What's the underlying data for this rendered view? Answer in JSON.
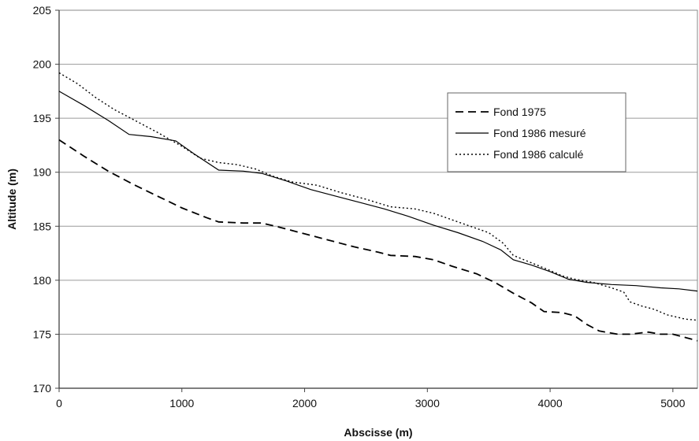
{
  "chart_data": {
    "type": "line",
    "title": "",
    "xlabel": "Abscisse (m)",
    "ylabel": "Altitude (m)",
    "xlim": [
      0,
      5200
    ],
    "ylim": [
      170,
      205
    ],
    "x_ticks": [
      0,
      1000,
      2000,
      3000,
      4000,
      5000
    ],
    "y_ticks": [
      170,
      175,
      180,
      185,
      190,
      195,
      200,
      205
    ],
    "grid": "horizontal",
    "legend_position": "right",
    "series": [
      {
        "name": "Fond 1975",
        "style": "dashed",
        "color": "#000000",
        "points": [
          [
            0,
            193.0
          ],
          [
            200,
            191.5
          ],
          [
            400,
            190.1
          ],
          [
            600,
            188.9
          ],
          [
            800,
            187.8
          ],
          [
            1000,
            186.7
          ],
          [
            1200,
            185.8
          ],
          [
            1300,
            185.4
          ],
          [
            1500,
            185.3
          ],
          [
            1650,
            185.3
          ],
          [
            1800,
            184.9
          ],
          [
            2000,
            184.3
          ],
          [
            2200,
            183.7
          ],
          [
            2400,
            183.1
          ],
          [
            2600,
            182.6
          ],
          [
            2700,
            182.3
          ],
          [
            2900,
            182.2
          ],
          [
            3050,
            181.9
          ],
          [
            3200,
            181.3
          ],
          [
            3400,
            180.6
          ],
          [
            3550,
            179.8
          ],
          [
            3700,
            178.8
          ],
          [
            3850,
            177.9
          ],
          [
            3950,
            177.1
          ],
          [
            4100,
            177.0
          ],
          [
            4200,
            176.7
          ],
          [
            4300,
            175.9
          ],
          [
            4400,
            175.3
          ],
          [
            4550,
            175.0
          ],
          [
            4650,
            175.0
          ],
          [
            4800,
            175.2
          ],
          [
            4900,
            175.0
          ],
          [
            5000,
            175.0
          ],
          [
            5100,
            174.7
          ],
          [
            5200,
            174.4
          ]
        ]
      },
      {
        "name": "Fond 1986 mesuré",
        "style": "solid",
        "color": "#000000",
        "points": [
          [
            0,
            197.5
          ],
          [
            200,
            196.2
          ],
          [
            400,
            194.8
          ],
          [
            570,
            193.5
          ],
          [
            750,
            193.3
          ],
          [
            950,
            192.9
          ],
          [
            1100,
            191.7
          ],
          [
            1300,
            190.2
          ],
          [
            1500,
            190.1
          ],
          [
            1650,
            189.9
          ],
          [
            1850,
            189.2
          ],
          [
            2050,
            188.4
          ],
          [
            2250,
            187.8
          ],
          [
            2450,
            187.2
          ],
          [
            2650,
            186.6
          ],
          [
            2850,
            185.9
          ],
          [
            3050,
            185.1
          ],
          [
            3250,
            184.4
          ],
          [
            3450,
            183.6
          ],
          [
            3600,
            182.8
          ],
          [
            3700,
            181.9
          ],
          [
            3850,
            181.4
          ],
          [
            4000,
            180.8
          ],
          [
            4150,
            180.1
          ],
          [
            4300,
            179.8
          ],
          [
            4500,
            179.6
          ],
          [
            4700,
            179.5
          ],
          [
            4900,
            179.3
          ],
          [
            5050,
            179.2
          ],
          [
            5200,
            179.0
          ]
        ]
      },
      {
        "name": "Fond 1986 calculé",
        "style": "dotted",
        "color": "#000000",
        "points": [
          [
            0,
            199.2
          ],
          [
            150,
            198.2
          ],
          [
            300,
            196.9
          ],
          [
            450,
            195.8
          ],
          [
            600,
            194.9
          ],
          [
            800,
            193.7
          ],
          [
            1000,
            192.4
          ],
          [
            1150,
            191.3
          ],
          [
            1300,
            190.9
          ],
          [
            1450,
            190.7
          ],
          [
            1600,
            190.3
          ],
          [
            1750,
            189.6
          ],
          [
            1900,
            189.1
          ],
          [
            2100,
            188.8
          ],
          [
            2300,
            188.1
          ],
          [
            2500,
            187.5
          ],
          [
            2700,
            186.8
          ],
          [
            2900,
            186.6
          ],
          [
            3050,
            186.2
          ],
          [
            3200,
            185.6
          ],
          [
            3350,
            185.0
          ],
          [
            3500,
            184.4
          ],
          [
            3620,
            183.4
          ],
          [
            3700,
            182.3
          ],
          [
            3850,
            181.6
          ],
          [
            4000,
            180.9
          ],
          [
            4100,
            180.4
          ],
          [
            4200,
            180.1
          ],
          [
            4350,
            179.8
          ],
          [
            4500,
            179.3
          ],
          [
            4600,
            178.9
          ],
          [
            4650,
            178.0
          ],
          [
            4750,
            177.6
          ],
          [
            4850,
            177.3
          ],
          [
            4950,
            176.8
          ],
          [
            5100,
            176.4
          ],
          [
            5200,
            176.3
          ]
        ]
      }
    ]
  }
}
